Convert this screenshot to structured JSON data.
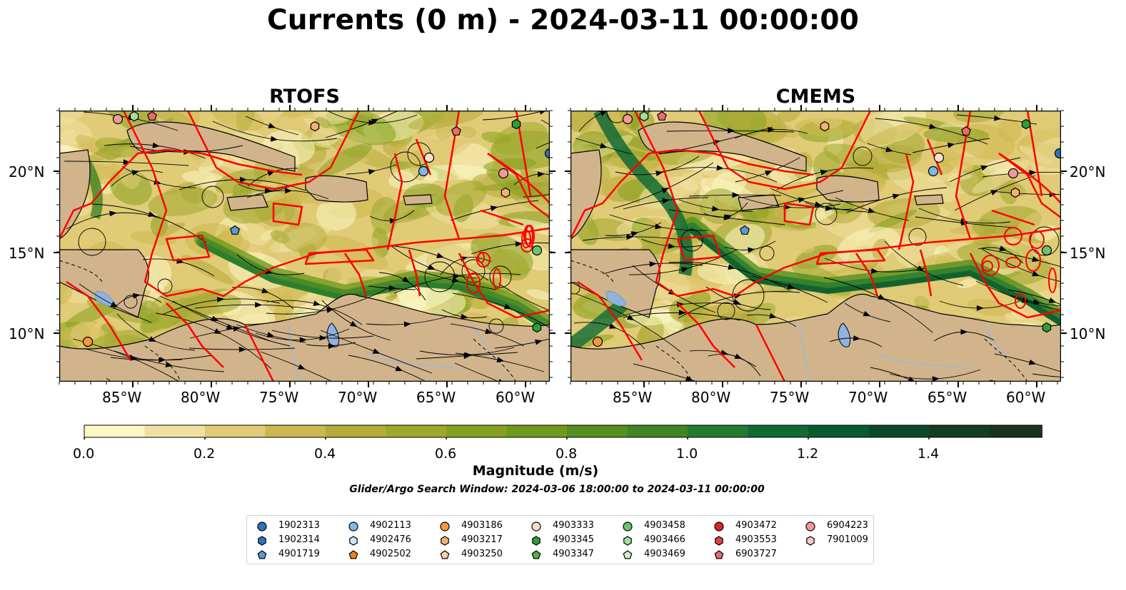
{
  "title": "Currents (0 m) - 2024-03-11 00:00:00",
  "panels": [
    {
      "title": "RTOFS"
    },
    {
      "title": "CMEMS"
    }
  ],
  "lon_ticks": [
    "85°W",
    "80°W",
    "75°W",
    "70°W",
    "65°W",
    "60°W"
  ],
  "lat_ticks": [
    "20°N",
    "15°N",
    "10°N"
  ],
  "colorbar": {
    "label": "Magnitude (m/s)",
    "ticks": [
      "0.0",
      "0.2",
      "0.4",
      "0.6",
      "0.8",
      "1.0",
      "1.2",
      "1.4"
    ],
    "colors": [
      "#fdf7c4",
      "#f1e1a0",
      "#e0cb77",
      "#cdb84f",
      "#b5ac3a",
      "#9fa82e",
      "#86a11f",
      "#6f9a1e",
      "#55901f",
      "#3f8425",
      "#257a2f",
      "#106a34",
      "#0a5a30",
      "#0b4a28",
      "#123e22",
      "#1a331d"
    ],
    "extend": "max"
  },
  "search_window": "Glider/Argo Search Window: 2024-03-06 18:00:00 to 2024-03-11 00:00:00",
  "legend": [
    {
      "id": "1902313",
      "marker": "circle",
      "color": "#2c76b8"
    },
    {
      "id": "1902314",
      "marker": "hexagon",
      "color": "#2c76b8"
    },
    {
      "id": "4901719",
      "marker": "pentagon",
      "color": "#5b9bd5"
    },
    {
      "id": "4902113",
      "marker": "circle",
      "color": "#7fb8e6"
    },
    {
      "id": "4902476",
      "marker": "hexagon",
      "color": "#cfe6f7"
    },
    {
      "id": "4902502",
      "marker": "pentagon",
      "color": "#f07f1a"
    },
    {
      "id": "4903186",
      "marker": "circle",
      "color": "#f49a3c"
    },
    {
      "id": "4903217",
      "marker": "hexagon",
      "color": "#f8b072"
    },
    {
      "id": "4903250",
      "marker": "pentagon",
      "color": "#fbd1a5"
    },
    {
      "id": "4903333",
      "marker": "circle",
      "color": "#fde0c8"
    },
    {
      "id": "4903345",
      "marker": "hexagon",
      "color": "#2e9e3a"
    },
    {
      "id": "4903347",
      "marker": "pentagon",
      "color": "#4fb548"
    },
    {
      "id": "4903458",
      "marker": "circle",
      "color": "#6dc46a"
    },
    {
      "id": "4903466",
      "marker": "hexagon",
      "color": "#a3dc9a"
    },
    {
      "id": "4903469",
      "marker": "pentagon",
      "color": "#d2f0c9"
    },
    {
      "id": "4903472",
      "marker": "circle",
      "color": "#d62728"
    },
    {
      "id": "4903553",
      "marker": "hexagon",
      "color": "#e0453f"
    },
    {
      "id": "6903727",
      "marker": "pentagon",
      "color": "#ec6b6b"
    },
    {
      "id": "6904223",
      "marker": "circle",
      "color": "#f19a98"
    },
    {
      "id": "7901009",
      "marker": "hexagon",
      "color": "#f9c8c6"
    }
  ],
  "colors": {
    "land": "#d2b48c",
    "lake": "#8fb3e0",
    "river": "#a7b7c8",
    "eez": "#ff0000",
    "streamline": "#000000"
  }
}
